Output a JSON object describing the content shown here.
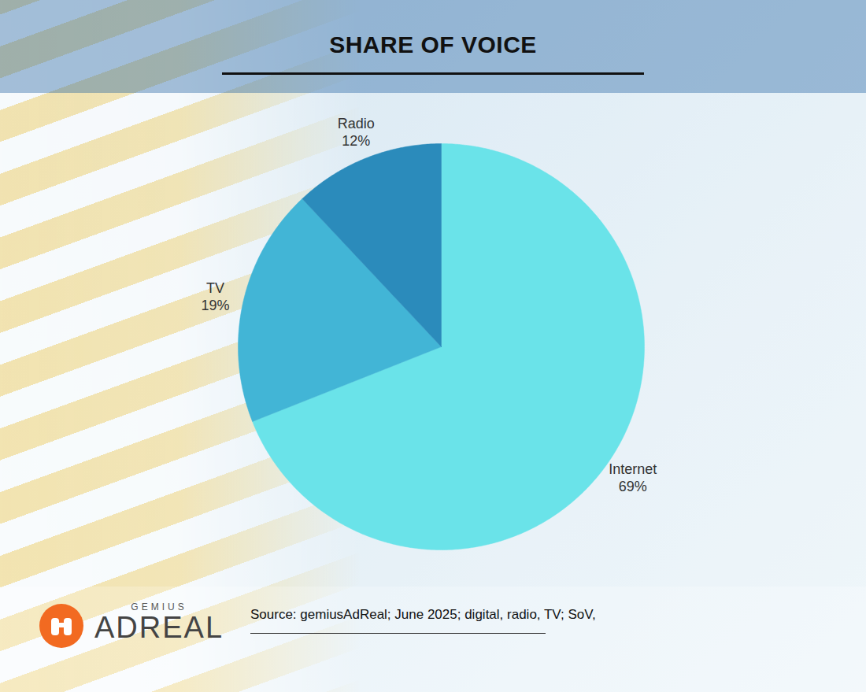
{
  "chart_data": {
    "type": "pie",
    "title": "SHARE OF VOICE",
    "categories": [
      "Internet",
      "TV",
      "Radio"
    ],
    "values": [
      69,
      19,
      12
    ],
    "value_labels": [
      "69%",
      "19%",
      "12%"
    ],
    "colors": [
      "#6ae3e9",
      "#42b5d6",
      "#2b8bbb"
    ],
    "data_labels": true,
    "tick_labels": false,
    "source": "Source: gemiusAdReal; June 2025; digital, radio, TV; SoV,",
    "logo": [
      "GEMIUS",
      "ADREAL"
    ]
  }
}
